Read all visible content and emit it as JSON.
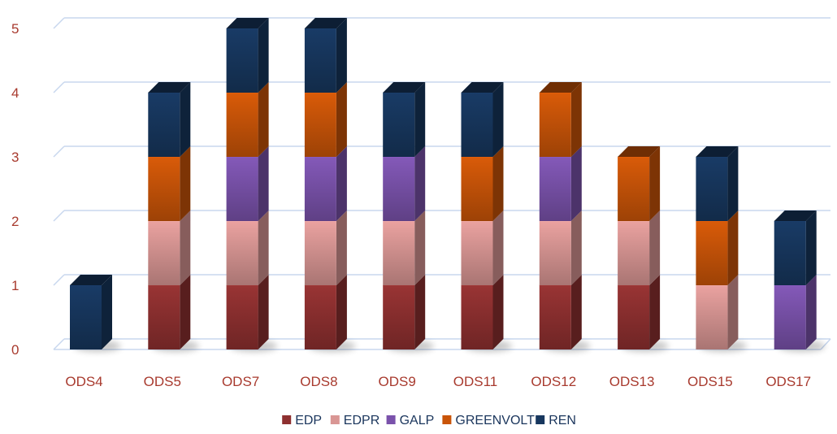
{
  "chart_data": {
    "type": "bar",
    "stacked": true,
    "three_d": true,
    "title": "",
    "xlabel": "",
    "ylabel": "",
    "ylim": [
      0,
      5
    ],
    "yticks": [
      "0",
      "1",
      "2",
      "3",
      "4",
      "5"
    ],
    "grid": true,
    "legend_position": "bottom",
    "categories": [
      "ODS4",
      "ODS5",
      "ODS7",
      "ODS8",
      "ODS9",
      "ODS11",
      "ODS12",
      "ODS13",
      "ODS15",
      "ODS17"
    ],
    "series": [
      {
        "name": "EDP",
        "color": "#8e3030",
        "values": [
          0,
          1,
          1,
          1,
          1,
          1,
          1,
          1,
          0,
          0
        ]
      },
      {
        "name": "EDPR",
        "color": "#d99694",
        "values": [
          0,
          1,
          1,
          1,
          1,
          1,
          1,
          1,
          1,
          0
        ]
      },
      {
        "name": "GALP",
        "color": "#7a52ab",
        "values": [
          0,
          0,
          1,
          1,
          1,
          0,
          1,
          0,
          0,
          1
        ]
      },
      {
        "name": "GREENVOLT",
        "color": "#c95408",
        "values": [
          0,
          1,
          1,
          1,
          0,
          1,
          1,
          1,
          1,
          0
        ]
      },
      {
        "name": "REN",
        "color": "#17375e",
        "values": [
          1,
          1,
          1,
          1,
          1,
          1,
          0,
          0,
          1,
          1
        ]
      }
    ],
    "tick_color": "#a83a2e",
    "legend_text_color": "#1a355c",
    "grid_color": "#c8d7ee"
  }
}
